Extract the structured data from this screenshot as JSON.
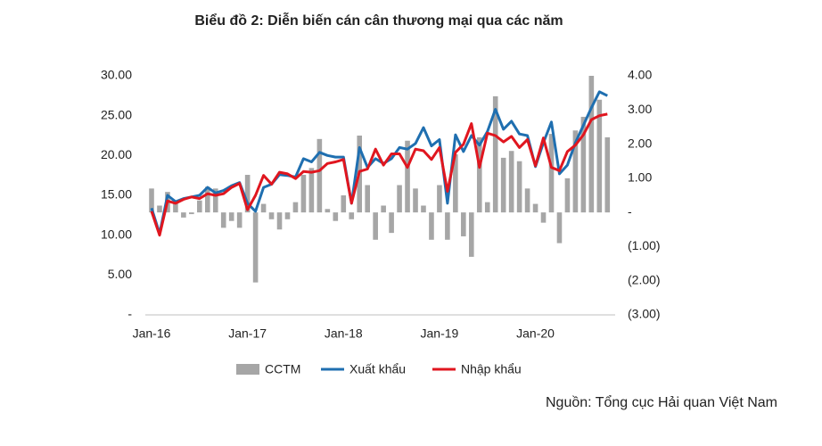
{
  "chart_data": {
    "type": "combo",
    "title": "Biểu đồ 2: Diễn biến cán cân thương mại qua các năm",
    "source": "Nguồn: Tổng cục Hải quan Việt Nam",
    "categories": [
      "Jan-16",
      null,
      null,
      null,
      null,
      null,
      null,
      null,
      null,
      null,
      null,
      null,
      "Jan-17",
      null,
      null,
      null,
      null,
      null,
      null,
      null,
      null,
      null,
      null,
      null,
      "Jan-18",
      null,
      null,
      null,
      null,
      null,
      null,
      null,
      null,
      null,
      null,
      null,
      "Jan-19",
      null,
      null,
      null,
      null,
      null,
      null,
      null,
      null,
      null,
      null,
      null,
      "Jan-20",
      null,
      null,
      null,
      null,
      null,
      null,
      null,
      null,
      null
    ],
    "ylim": [
      0,
      30
    ],
    "yticks": [
      {
        "value": 0,
        "label": "-"
      },
      {
        "value": 5,
        "label": "5.00"
      },
      {
        "value": 10,
        "label": "10.00"
      },
      {
        "value": 15,
        "label": "15.00"
      },
      {
        "value": 20,
        "label": "20.00"
      },
      {
        "value": 25,
        "label": "25.00"
      },
      {
        "value": 30,
        "label": "30.00"
      }
    ],
    "y2lim": [
      -3,
      4
    ],
    "y2ticks": [
      {
        "value": -3,
        "label": "(3.00)"
      },
      {
        "value": -2,
        "label": "(2.00)"
      },
      {
        "value": -1,
        "label": "(1.00)"
      },
      {
        "value": 0,
        "label": "-"
      },
      {
        "value": 1,
        "label": "1.00"
      },
      {
        "value": 2,
        "label": "2.00"
      },
      {
        "value": 3,
        "label": "3.00"
      },
      {
        "value": 4,
        "label": "4.00"
      }
    ],
    "series": [
      {
        "name": "CCTM",
        "type": "bar",
        "axis": "y2",
        "color": "#a6a6a6",
        "values": [
          0.7,
          0.2,
          0.6,
          0.3,
          -0.15,
          -0.05,
          0.35,
          0.75,
          0.7,
          -0.45,
          -0.25,
          -0.45,
          1.1,
          -2.05,
          0.25,
          -0.2,
          -0.5,
          -0.2,
          0.3,
          1.1,
          1.3,
          2.15,
          0.1,
          -0.25,
          0.5,
          -0.2,
          2.25,
          0.8,
          -0.8,
          0.2,
          -0.6,
          0.8,
          2.1,
          0.7,
          0.2,
          -0.8,
          0.8,
          -0.8,
          1.7,
          -0.7,
          -1.3,
          2.2,
          0.3,
          3.4,
          1.6,
          1.8,
          1.5,
          0.7,
          0.25,
          -0.3,
          2.3,
          -0.9,
          1.0,
          2.4,
          2.8,
          4.0,
          3.3,
          2.2
        ]
      },
      {
        "name": "Xuất khẩu",
        "type": "line",
        "color": "#1f6fb0",
        "values": [
          13.4,
          10.2,
          15.0,
          14.2,
          14.6,
          14.8,
          15.0,
          16.0,
          15.3,
          15.6,
          16.2,
          16.6,
          14.0,
          13.0,
          16.0,
          16.4,
          17.6,
          17.5,
          17.3,
          19.6,
          19.2,
          20.4,
          20.0,
          19.8,
          19.8,
          14.0,
          21.0,
          18.5,
          19.6,
          19.0,
          19.6,
          21.0,
          20.8,
          21.5,
          23.5,
          21.2,
          22.0,
          14.0,
          22.6,
          20.5,
          22.5,
          21.3,
          23.0,
          25.8,
          23.3,
          24.3,
          22.7,
          22.5,
          18.6,
          21.6,
          24.2,
          17.7,
          18.8,
          21.6,
          23.8,
          26.0,
          28.0,
          27.5
        ]
      },
      {
        "name": "Nhập khẩu",
        "type": "line",
        "color": "#e0161f",
        "values": [
          13.0,
          10.0,
          14.3,
          14.0,
          14.5,
          14.8,
          14.6,
          15.2,
          15.0,
          15.2,
          16.0,
          16.5,
          13.2,
          15.0,
          17.5,
          16.4,
          17.9,
          17.7,
          17.1,
          18.0,
          17.9,
          18.1,
          19.0,
          19.2,
          19.5,
          14.0,
          18.0,
          18.3,
          20.8,
          18.8,
          20.2,
          20.2,
          18.5,
          20.8,
          20.6,
          19.5,
          21.0,
          15.5,
          20.4,
          21.4,
          24.0,
          18.5,
          22.8,
          22.5,
          21.7,
          22.4,
          21.0,
          22.0,
          18.7,
          22.2,
          18.5,
          18.1,
          20.5,
          21.3,
          22.6,
          24.5,
          25.0,
          25.2
        ]
      }
    ]
  }
}
